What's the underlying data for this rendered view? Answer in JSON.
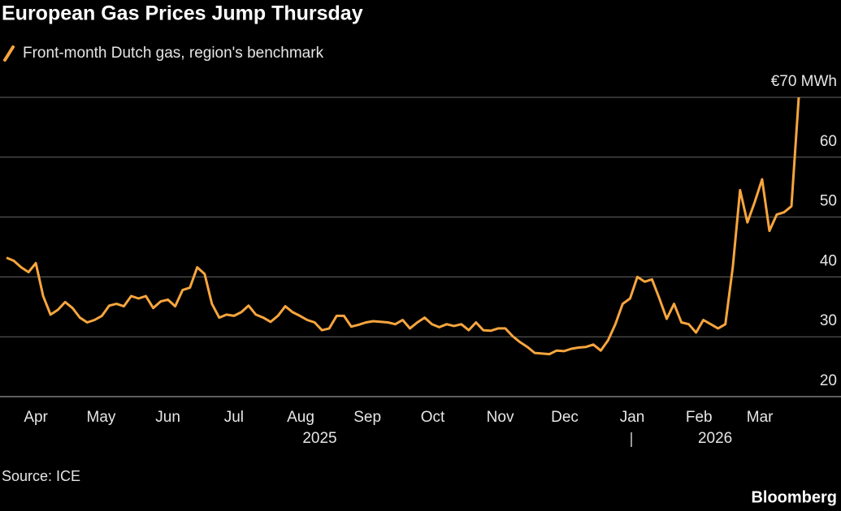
{
  "chart_data": {
    "type": "line",
    "title": "European Gas Prices Jump Thursday",
    "source": "Source: ICE",
    "brand": "Bloomberg",
    "series": [
      {
        "name": "Front-month Dutch gas, region's benchmark",
        "color": "#f7a53e",
        "values": [
          43.2,
          42.7,
          41.6,
          40.8,
          42.3,
          36.8,
          33.7,
          34.5,
          35.8,
          34.8,
          33.2,
          32.4,
          32.8,
          33.5,
          35.2,
          35.5,
          35.1,
          36.8,
          36.4,
          36.8,
          34.8,
          35.9,
          36.2,
          35.1,
          37.8,
          38.2,
          41.6,
          40.5,
          35.5,
          33.2,
          33.7,
          33.5,
          34.1,
          35.2,
          33.7,
          33.2,
          32.5,
          33.5,
          35.1,
          34.1,
          33.5,
          32.8,
          32.4,
          31.1,
          31.4,
          33.5,
          33.5,
          31.7,
          32.0,
          32.4,
          32.6,
          32.5,
          32.4,
          32.1,
          32.8,
          31.4,
          32.4,
          33.2,
          32.1,
          31.6,
          32.1,
          31.8,
          32.1,
          31.1,
          32.4,
          31.1,
          31.0,
          31.4,
          31.4,
          30.1,
          29.1,
          28.3,
          27.3,
          27.2,
          27.1,
          27.7,
          27.6,
          28.0,
          28.2,
          28.3,
          28.7,
          27.7,
          29.4,
          32.1,
          35.5,
          36.4,
          40.0,
          39.2,
          39.6,
          36.4,
          33.0,
          35.5,
          32.4,
          32.1,
          30.7,
          32.8,
          32.1,
          31.4,
          32.1,
          41.6,
          54.5,
          49.1,
          52.5,
          56.3,
          47.7,
          50.4,
          50.8,
          51.8,
          70
        ]
      }
    ],
    "xlim": [
      0,
      108
    ],
    "xticks": [
      {
        "value": 4.0,
        "label": "Apr"
      },
      {
        "value": 12.9,
        "label": "May"
      },
      {
        "value": 22.0,
        "label": "Jun"
      },
      {
        "value": 31.0,
        "label": "Jul"
      },
      {
        "value": 40.1,
        "label": "Aug"
      },
      {
        "value": 49.2,
        "label": "Sep"
      },
      {
        "value": 58.1,
        "label": "Oct"
      },
      {
        "value": 67.3,
        "label": "Nov"
      },
      {
        "value": 76.1,
        "label": "Dec"
      },
      {
        "value": 85.3,
        "label": "Jan"
      },
      {
        "value": 94.4,
        "label": "Feb"
      },
      {
        "value": 102.7,
        "label": "Mar"
      }
    ],
    "year_labels": [
      {
        "value": 42.7,
        "label": "2025"
      },
      {
        "value": 96.6,
        "label": "2026"
      }
    ],
    "ylim": [
      20,
      70
    ],
    "yticks": [
      20,
      30,
      40,
      50,
      60,
      {
        "value": 70,
        "label": "€70 MWh"
      }
    ],
    "grid": true
  }
}
